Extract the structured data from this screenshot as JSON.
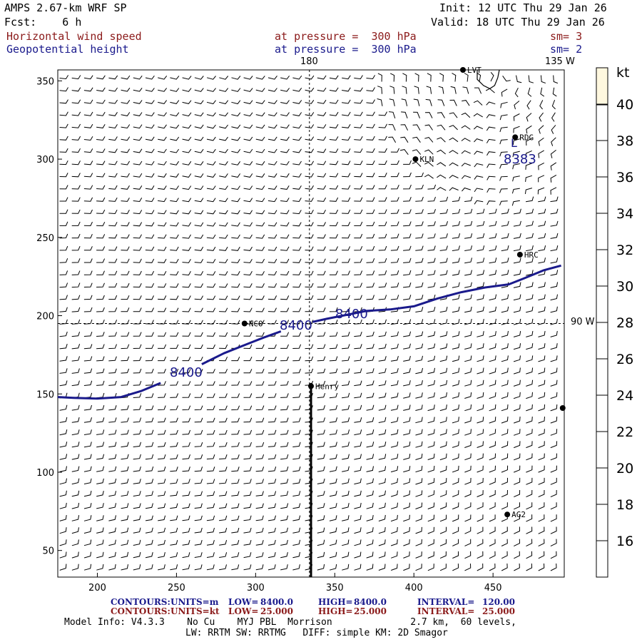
{
  "header": {
    "model": "AMPS 2.67-km WRF SP",
    "init": "Init: 12 UTC Thu 29 Jan 26",
    "fcst": "Fcst:    6 h",
    "valid": "Valid: 18 UTC Thu 29 Jan 26",
    "field1": {
      "name": "Horizontal wind speed",
      "level": "at pressure =  300 hPa",
      "sm": "sm= 3"
    },
    "field2": {
      "name": "Geopotential height",
      "level": "at pressure =  300 hPa",
      "sm": "sm= 2"
    }
  },
  "map_labels": {
    "lon_180": "180",
    "lon_135w": "135 W",
    "lon_90w": "90 W",
    "stations": [
      "LVT",
      "RDG",
      "KLN",
      "HRC",
      "NCO",
      "Henry",
      "AG2"
    ],
    "contour_labels": [
      "8400",
      "8400",
      "8400",
      "8383",
      "L"
    ]
  },
  "chart_data": {
    "type": "contour",
    "x_ticks": [
      200,
      250,
      300,
      350,
      400,
      450
    ],
    "y_ticks": [
      50,
      100,
      150,
      200,
      250,
      300,
      350
    ],
    "xlim": [
      175,
      495
    ],
    "ylim": [
      33,
      357
    ],
    "contour_8400_segments": [
      [
        [
          175,
          148
        ],
        [
          185,
          147.5
        ],
        [
          200,
          147
        ],
        [
          215,
          148
        ],
        [
          228,
          152
        ],
        [
          240,
          157
        ]
      ],
      [
        [
          266,
          169
        ],
        [
          280,
          176
        ],
        [
          295,
          182
        ],
        [
          305,
          186
        ],
        [
          316,
          190
        ]
      ],
      [
        [
          336,
          196
        ],
        [
          345,
          198
        ],
        [
          355,
          200
        ],
        [
          370,
          203
        ],
        [
          385,
          204
        ],
        [
          400,
          206
        ],
        [
          415,
          211
        ],
        [
          430,
          215
        ],
        [
          445,
          218
        ],
        [
          460,
          220
        ],
        [
          470,
          224
        ],
        [
          482,
          229
        ],
        [
          493,
          232
        ]
      ]
    ],
    "contour_8383": [
      [
        440,
        357
      ],
      [
        440,
        351
      ],
      [
        444,
        347
      ],
      [
        448,
        345
      ],
      [
        451,
        347
      ],
      [
        453,
        352
      ],
      [
        454,
        357
      ]
    ],
    "cross_section_x": 335,
    "cross_section_y": [
      33,
      157
    ],
    "grid_lon180_x": 334,
    "grid_lon90w_y": 195,
    "station_points": [
      {
        "label": "LVT",
        "x": 431,
        "y": 357
      },
      {
        "label": "RDG",
        "x": 464,
        "y": 314
      },
      {
        "label": "KLN",
        "x": 401,
        "y": 300
      },
      {
        "label": "HRC",
        "x": 467,
        "y": 239
      },
      {
        "label": "NCO",
        "x": 293,
        "y": 195
      },
      {
        "label": "Henry",
        "x": 335,
        "y": 155
      },
      {
        "label": "",
        "x": 494,
        "y": 141
      },
      {
        "label": "AG2",
        "x": 459,
        "y": 73
      }
    ],
    "colorbar": {
      "unit": "kt",
      "ticks": [
        16,
        18,
        20,
        22,
        24,
        26,
        28,
        30,
        32,
        34,
        36,
        38,
        40
      ],
      "range": [
        14,
        42
      ]
    }
  },
  "footer": {
    "row1": {
      "a": "CONTOURS:",
      "b": "UNITS=m",
      "c": "LOW=",
      "d": "8400.0",
      "e": "HIGH=",
      "f": "8400.0",
      "g": "INTERVAL=",
      "h": "120.00"
    },
    "row2": {
      "a": "CONTOURS:",
      "b": "UNITS=kt",
      "c": "LOW=",
      "d": "25.000",
      "e": "HIGH=",
      "f": "25.000",
      "g": "INTERVAL=",
      "h": "25.000"
    },
    "model_info": "Model Info: V4.3.3    No Cu    MYJ PBL  Morrison              2.7 km,  60 levels,",
    "physics": "LW: RRTM SW: RRTMG   DIFF: simple KM: 2D Smagor"
  }
}
